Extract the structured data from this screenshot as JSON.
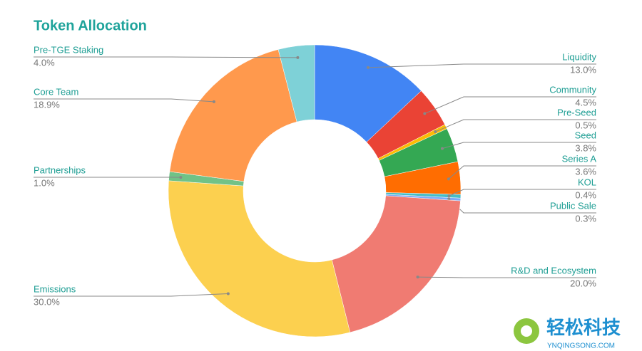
{
  "chart_data": {
    "type": "pie",
    "donut": true,
    "title": "Token Allocation",
    "categories": [
      "Liquidity",
      "Community",
      "Pre-Seed",
      "Seed",
      "Series A",
      "KOL",
      "Public Sale",
      "R&D and Ecosystem",
      "Emissions",
      "Partnerships",
      "Core Team",
      "Pre-TGE Staking"
    ],
    "values": [
      13.0,
      4.5,
      0.5,
      3.8,
      3.6,
      0.4,
      0.3,
      20.0,
      30.0,
      1.0,
      18.9,
      4.0
    ],
    "value_labels": [
      "13.0%",
      "4.5%",
      "0.5%",
      "3.8%",
      "3.6%",
      "0.4%",
      "0.3%",
      "20.0%",
      "30.0%",
      "1.0%",
      "18.9%",
      "4.0%"
    ],
    "colors": [
      "#4285f4",
      "#ea4335",
      "#fbbc04",
      "#34a853",
      "#ff6d01",
      "#46bdc6",
      "#7baaf7",
      "#f07b72",
      "#fcd04f",
      "#71c287",
      "#ff994d",
      "#7ed1d7"
    ]
  },
  "watermark": {
    "text": "轻松科技",
    "url": "YNQINGSONG.COM"
  }
}
